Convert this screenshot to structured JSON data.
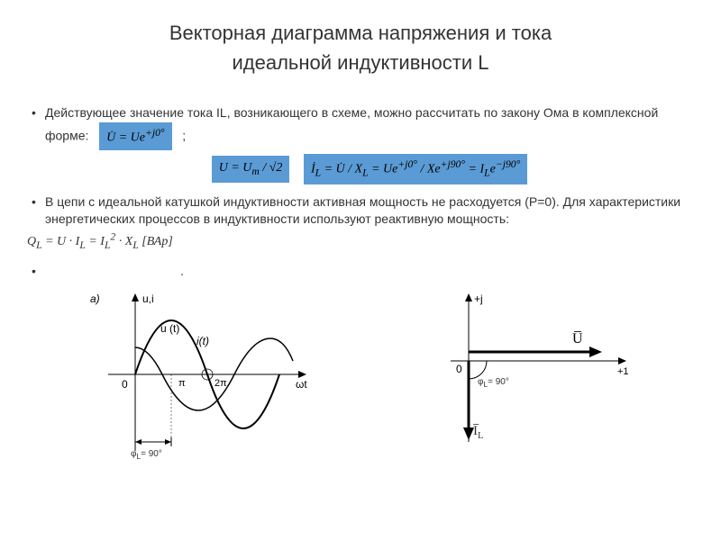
{
  "title_line1": "Векторная диаграмма напряжения и тока",
  "title_line2": "идеальной индуктивности L",
  "para1_text": "Действующее значение тока IL, возникающего в схеме, можно рассчитать по закону Ома в комплексной форме:",
  "para1_suffix": ";",
  "formula_u_complex": "U̇ = Ue<sup>+j0°</sup>",
  "formula_u_rms": "U = U<sub>m</sub> / √2",
  "formula_il": "İ<sub>L</sub> = U̇ / X<sub>L</sub> = Ue<sup>+j0°</sup> / Xe<sup>+j90°</sup> = I<sub>L</sub>e<sup>−j90°</sup>",
  "para2_text": "В цепи с идеальной катушкой индуктивности активная мощность не расходуется (P=0). Для характеристики энергетических процессов в индуктивности используют реактивную мощность:",
  "formula_ql": "Q<sub>L</sub> = U · I<sub>L</sub> = I<sub>L</sub><sup>2</sup> · X<sub>L</sub> [ВАр]",
  "bullet3_dot": ".",
  "left_diagram": {
    "label_a": "a)",
    "axis_y": "u,i",
    "axis_x": "ωt",
    "curve_u": "u (t)",
    "curve_i": "i(t)",
    "zero": "0",
    "pi": "π",
    "two_pi": "2π",
    "phi_label": "φ<sub>L</sub>= 90°",
    "axis_color": "#000000",
    "curve_color": "#000000",
    "background": "#ffffff"
  },
  "right_diagram": {
    "axis_y": "+j",
    "axis_x": "+1",
    "zero": "0",
    "vector_u": "U̅",
    "vector_i": "I̅L",
    "phi_label": "φ<sub>L</sub>= 90°",
    "axis_color": "#000000",
    "background": "#ffffff"
  },
  "colors": {
    "formula_bg": "#5b9bd5",
    "text": "#333333",
    "page_bg": "#ffffff"
  },
  "typography": {
    "title_fontsize": 22,
    "body_fontsize": 14,
    "diagram_fontsize": 11,
    "font_family": "Arial"
  }
}
